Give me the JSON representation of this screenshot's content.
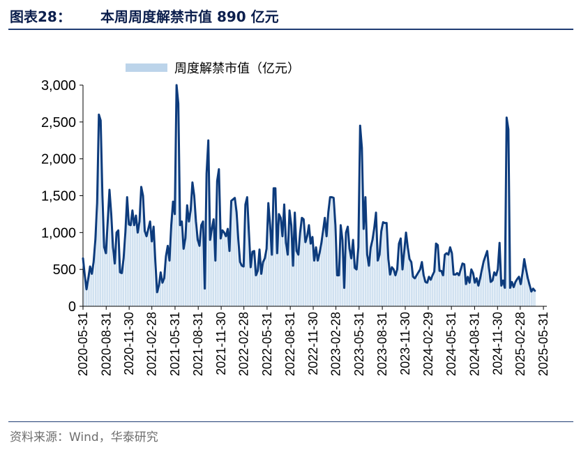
{
  "header": {
    "figure_label": "图表28：",
    "title": "本周周度解禁市值 890 亿元"
  },
  "source": "资料来源：Wind，华泰研究",
  "colors": {
    "line": "#0d3b7c",
    "bars": "#bcd4ea",
    "rule": "#1f3c73"
  },
  "chart_data": {
    "type": "line",
    "title": "",
    "xlabel": "",
    "ylabel": "",
    "ylim": [
      0,
      3000
    ],
    "y_ticks": [
      "3,000",
      "2,500",
      "2,000",
      "1,500",
      "1,000",
      "500",
      "0"
    ],
    "y_tick_values": [
      3000,
      2500,
      2000,
      1500,
      1000,
      500,
      0
    ],
    "x_range": [
      "2020-05-31",
      "2025-06-08"
    ],
    "x_ticks": [
      "2020-05-31",
      "2020-08-31",
      "2020-11-30",
      "2021-02-28",
      "2021-05-31",
      "2021-08-31",
      "2021-11-30",
      "2022-02-28",
      "2022-05-31",
      "2022-08-31",
      "2022-11-30",
      "2023-02-28",
      "2023-05-31",
      "2023-08-31",
      "2023-11-30",
      "2024-02-29",
      "2024-05-31",
      "2024-08-31",
      "2024-11-30",
      "2025-02-28",
      "2025-05-31"
    ],
    "legend": {
      "position": "top-center",
      "entries": [
        "周度解禁市值（亿元）"
      ]
    },
    "grid": false,
    "series": [
      {
        "name": "周度解禁市值（亿元）",
        "style": "bar+line",
        "points": [
          [
            "2020-05-31",
            650
          ],
          [
            "2020-06-07",
            420
          ],
          [
            "2020-06-14",
            230
          ],
          [
            "2020-06-21",
            380
          ],
          [
            "2020-06-28",
            540
          ],
          [
            "2020-07-05",
            440
          ],
          [
            "2020-07-12",
            600
          ],
          [
            "2020-07-19",
            900
          ],
          [
            "2020-07-26",
            1400
          ],
          [
            "2020-08-02",
            2600
          ],
          [
            "2020-08-09",
            2520
          ],
          [
            "2020-08-16",
            1500
          ],
          [
            "2020-08-23",
            800
          ],
          [
            "2020-08-30",
            720
          ],
          [
            "2020-09-06",
            1150
          ],
          [
            "2020-09-13",
            1580
          ],
          [
            "2020-09-20",
            1250
          ],
          [
            "2020-09-27",
            800
          ],
          [
            "2020-10-04",
            580
          ],
          [
            "2020-10-11",
            1000
          ],
          [
            "2020-10-18",
            1030
          ],
          [
            "2020-10-25",
            460
          ],
          [
            "2020-11-01",
            450
          ],
          [
            "2020-11-08",
            650
          ],
          [
            "2020-11-15",
            1000
          ],
          [
            "2020-11-22",
            1480
          ],
          [
            "2020-11-29",
            1110
          ],
          [
            "2020-12-06",
            1100
          ],
          [
            "2020-12-13",
            1300
          ],
          [
            "2020-12-20",
            1100
          ],
          [
            "2020-12-27",
            1230
          ],
          [
            "2021-01-03",
            1000
          ],
          [
            "2021-01-10",
            1150
          ],
          [
            "2021-01-17",
            1620
          ],
          [
            "2021-01-24",
            1500
          ],
          [
            "2021-01-31",
            1020
          ],
          [
            "2021-02-07",
            950
          ],
          [
            "2021-02-14",
            1050
          ],
          [
            "2021-02-21",
            1150
          ],
          [
            "2021-02-28",
            880
          ],
          [
            "2021-03-07",
            1080
          ],
          [
            "2021-03-14",
            600
          ],
          [
            "2021-03-21",
            190
          ],
          [
            "2021-03-28",
            280
          ],
          [
            "2021-04-04",
            460
          ],
          [
            "2021-04-11",
            320
          ],
          [
            "2021-04-18",
            380
          ],
          [
            "2021-04-25",
            680
          ],
          [
            "2021-05-02",
            820
          ],
          [
            "2021-05-09",
            620
          ],
          [
            "2021-05-16",
            1100
          ],
          [
            "2021-05-23",
            1420
          ],
          [
            "2021-05-30",
            1250
          ],
          [
            "2021-06-06",
            3000
          ],
          [
            "2021-06-13",
            2750
          ],
          [
            "2021-06-20",
            1100
          ],
          [
            "2021-06-27",
            1150
          ],
          [
            "2021-07-04",
            780
          ],
          [
            "2021-07-11",
            920
          ],
          [
            "2021-07-18",
            1370
          ],
          [
            "2021-07-25",
            1150
          ],
          [
            "2021-08-01",
            1300
          ],
          [
            "2021-08-08",
            1680
          ],
          [
            "2021-08-15",
            1500
          ],
          [
            "2021-08-22",
            1150
          ],
          [
            "2021-08-29",
            900
          ],
          [
            "2021-09-05",
            820
          ],
          [
            "2021-09-12",
            1100
          ],
          [
            "2021-09-19",
            1150
          ],
          [
            "2021-09-26",
            240
          ],
          [
            "2021-10-03",
            1800
          ],
          [
            "2021-10-10",
            2250
          ],
          [
            "2021-10-17",
            900
          ],
          [
            "2021-10-24",
            1050
          ],
          [
            "2021-10-31",
            1180
          ],
          [
            "2021-11-07",
            620
          ],
          [
            "2021-11-14",
            1700
          ],
          [
            "2021-11-21",
            1860
          ],
          [
            "2021-11-28",
            920
          ],
          [
            "2021-12-05",
            1030
          ],
          [
            "2021-12-12",
            1000
          ],
          [
            "2021-12-19",
            950
          ],
          [
            "2021-12-26",
            1050
          ],
          [
            "2022-01-02",
            750
          ],
          [
            "2022-01-09",
            1430
          ],
          [
            "2022-01-16",
            1450
          ],
          [
            "2022-01-23",
            1470
          ],
          [
            "2022-01-30",
            1280
          ],
          [
            "2022-02-06",
            900
          ],
          [
            "2022-02-13",
            600
          ],
          [
            "2022-02-20",
            550
          ],
          [
            "2022-02-27",
            540
          ],
          [
            "2022-03-06",
            1380
          ],
          [
            "2022-03-13",
            1480
          ],
          [
            "2022-03-20",
            1000
          ],
          [
            "2022-03-27",
            530
          ],
          [
            "2022-04-03",
            740
          ],
          [
            "2022-04-10",
            750
          ],
          [
            "2022-04-17",
            420
          ],
          [
            "2022-04-24",
            480
          ],
          [
            "2022-05-01",
            770
          ],
          [
            "2022-05-08",
            440
          ],
          [
            "2022-05-15",
            600
          ],
          [
            "2022-05-22",
            650
          ],
          [
            "2022-05-29",
            780
          ],
          [
            "2022-06-05",
            1400
          ],
          [
            "2022-06-12",
            1100
          ],
          [
            "2022-06-19",
            700
          ],
          [
            "2022-06-26",
            1600
          ],
          [
            "2022-07-03",
            1600
          ],
          [
            "2022-07-10",
            720
          ],
          [
            "2022-07-17",
            1250
          ],
          [
            "2022-07-24",
            1200
          ],
          [
            "2022-07-31",
            950
          ],
          [
            "2022-08-07",
            1380
          ],
          [
            "2022-08-14",
            860
          ],
          [
            "2022-08-21",
            700
          ],
          [
            "2022-08-28",
            1300
          ],
          [
            "2022-09-04",
            1100
          ],
          [
            "2022-09-11",
            550
          ],
          [
            "2022-09-18",
            1270
          ],
          [
            "2022-09-25",
            750
          ],
          [
            "2022-10-02",
            700
          ],
          [
            "2022-10-09",
            1000
          ],
          [
            "2022-10-16",
            1200
          ],
          [
            "2022-10-23",
            1180
          ],
          [
            "2022-10-30",
            870
          ],
          [
            "2022-11-06",
            950
          ],
          [
            "2022-11-13",
            1100
          ],
          [
            "2022-11-20",
            850
          ],
          [
            "2022-11-27",
            940
          ],
          [
            "2022-12-04",
            620
          ],
          [
            "2022-12-11",
            800
          ],
          [
            "2022-12-18",
            620
          ],
          [
            "2022-12-25",
            720
          ],
          [
            "2023-01-01",
            850
          ],
          [
            "2023-01-08",
            1020
          ],
          [
            "2023-01-15",
            1200
          ],
          [
            "2023-01-22",
            950
          ],
          [
            "2023-01-29",
            1280
          ],
          [
            "2023-02-05",
            1480
          ],
          [
            "2023-02-12",
            1480
          ],
          [
            "2023-02-19",
            1470
          ],
          [
            "2023-02-26",
            1100
          ],
          [
            "2023-03-05",
            420
          ],
          [
            "2023-03-12",
            420
          ],
          [
            "2023-03-19",
            1100
          ],
          [
            "2023-03-26",
            900
          ],
          [
            "2023-04-02",
            250
          ],
          [
            "2023-04-09",
            1000
          ],
          [
            "2023-04-16",
            1080
          ],
          [
            "2023-04-23",
            780
          ],
          [
            "2023-04-30",
            650
          ],
          [
            "2023-05-07",
            900
          ],
          [
            "2023-05-14",
            520
          ],
          [
            "2023-05-21",
            500
          ],
          [
            "2023-05-28",
            800
          ],
          [
            "2023-06-04",
            2450
          ],
          [
            "2023-06-11",
            2150
          ],
          [
            "2023-06-18",
            1050
          ],
          [
            "2023-06-25",
            1480
          ],
          [
            "2023-07-02",
            700
          ],
          [
            "2023-07-09",
            550
          ],
          [
            "2023-07-16",
            800
          ],
          [
            "2023-07-23",
            900
          ],
          [
            "2023-07-30",
            1060
          ],
          [
            "2023-08-06",
            1270
          ],
          [
            "2023-08-13",
            620
          ],
          [
            "2023-08-20",
            700
          ],
          [
            "2023-08-27",
            1020
          ],
          [
            "2023-09-03",
            1140
          ],
          [
            "2023-09-10",
            1130
          ],
          [
            "2023-09-17",
            1130
          ],
          [
            "2023-09-24",
            640
          ],
          [
            "2023-10-01",
            430
          ],
          [
            "2023-10-08",
            530
          ],
          [
            "2023-10-15",
            500
          ],
          [
            "2023-10-22",
            420
          ],
          [
            "2023-10-29",
            500
          ],
          [
            "2023-11-05",
            850
          ],
          [
            "2023-11-12",
            920
          ],
          [
            "2023-11-19",
            500
          ],
          [
            "2023-11-26",
            750
          ],
          [
            "2023-12-03",
            1000
          ],
          [
            "2023-12-10",
            800
          ],
          [
            "2023-12-17",
            640
          ],
          [
            "2023-12-24",
            600
          ],
          [
            "2023-12-31",
            400
          ],
          [
            "2024-01-07",
            380
          ],
          [
            "2024-01-14",
            420
          ],
          [
            "2024-01-21",
            460
          ],
          [
            "2024-01-28",
            500
          ],
          [
            "2024-02-04",
            600
          ],
          [
            "2024-02-11",
            420
          ],
          [
            "2024-02-18",
            330
          ],
          [
            "2024-02-25",
            320
          ],
          [
            "2024-03-03",
            400
          ],
          [
            "2024-03-10",
            360
          ],
          [
            "2024-03-17",
            420
          ],
          [
            "2024-03-24",
            470
          ],
          [
            "2024-03-31",
            850
          ],
          [
            "2024-04-07",
            830
          ],
          [
            "2024-04-14",
            480
          ],
          [
            "2024-04-21",
            480
          ],
          [
            "2024-04-28",
            420
          ],
          [
            "2024-05-05",
            700
          ],
          [
            "2024-05-12",
            720
          ],
          [
            "2024-05-19",
            700
          ],
          [
            "2024-05-26",
            800
          ],
          [
            "2024-06-02",
            720
          ],
          [
            "2024-06-09",
            430
          ],
          [
            "2024-06-16",
            430
          ],
          [
            "2024-06-23",
            450
          ],
          [
            "2024-06-30",
            420
          ],
          [
            "2024-07-07",
            500
          ],
          [
            "2024-07-14",
            580
          ],
          [
            "2024-07-21",
            570
          ],
          [
            "2024-07-28",
            300
          ],
          [
            "2024-08-04",
            400
          ],
          [
            "2024-08-11",
            320
          ],
          [
            "2024-08-18",
            500
          ],
          [
            "2024-08-25",
            450
          ],
          [
            "2024-09-01",
            320
          ],
          [
            "2024-09-08",
            380
          ],
          [
            "2024-09-15",
            280
          ],
          [
            "2024-09-22",
            380
          ],
          [
            "2024-09-29",
            500
          ],
          [
            "2024-10-06",
            610
          ],
          [
            "2024-10-13",
            680
          ],
          [
            "2024-10-20",
            750
          ],
          [
            "2024-10-27",
            520
          ],
          [
            "2024-11-03",
            330
          ],
          [
            "2024-11-10",
            350
          ],
          [
            "2024-11-17",
            460
          ],
          [
            "2024-11-24",
            420
          ],
          [
            "2024-12-01",
            500
          ],
          [
            "2024-12-08",
            860
          ],
          [
            "2024-12-15",
            280
          ],
          [
            "2024-12-22",
            350
          ],
          [
            "2024-12-29",
            250
          ],
          [
            "2025-01-05",
            2560
          ],
          [
            "2025-01-12",
            2400
          ],
          [
            "2025-01-19",
            250
          ],
          [
            "2025-01-26",
            330
          ],
          [
            "2025-02-02",
            260
          ],
          [
            "2025-02-09",
            330
          ],
          [
            "2025-02-16",
            370
          ],
          [
            "2025-02-23",
            400
          ],
          [
            "2025-03-02",
            300
          ],
          [
            "2025-03-09",
            450
          ],
          [
            "2025-03-16",
            640
          ],
          [
            "2025-03-23",
            500
          ],
          [
            "2025-03-30",
            380
          ],
          [
            "2025-04-06",
            290
          ],
          [
            "2025-04-13",
            200
          ],
          [
            "2025-04-20",
            240
          ],
          [
            "2025-04-27",
            210
          ]
        ]
      }
    ]
  }
}
